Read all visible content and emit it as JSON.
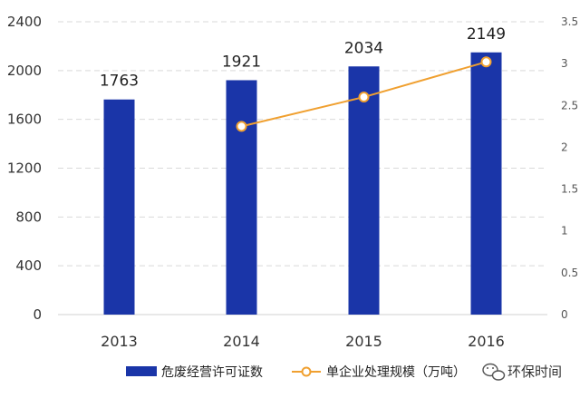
{
  "chart_data": {
    "type": "bar",
    "categories": [
      "2013",
      "2014",
      "2015",
      "2016"
    ],
    "series": [
      {
        "name": "危废经营许可证数",
        "type": "bar",
        "axis": "left",
        "values": [
          1763,
          1921,
          2034,
          2149
        ],
        "color": "#1a35a8"
      },
      {
        "name": "单企业处理规模（万吨）",
        "type": "line",
        "axis": "right",
        "values": [
          null,
          2.25,
          2.6,
          3.02
        ],
        "color": "#f0a030"
      }
    ],
    "data_labels": [
      "1763",
      "1921",
      "2034",
      "2149"
    ],
    "y_left": {
      "min": 0,
      "max": 2400,
      "ticks": [
        "0",
        "400",
        "800",
        "1200",
        "1600",
        "2000",
        "2400"
      ]
    },
    "y_right": {
      "min": 0,
      "max": 3.5,
      "ticks": [
        "0",
        "0.5",
        "1",
        "1.5",
        "2",
        "2.5",
        "3",
        "3.5"
      ]
    },
    "grid": true,
    "legend_placement": "bottom"
  },
  "watermark": {
    "text": "环保时间",
    "icon": "wechat-icon"
  }
}
